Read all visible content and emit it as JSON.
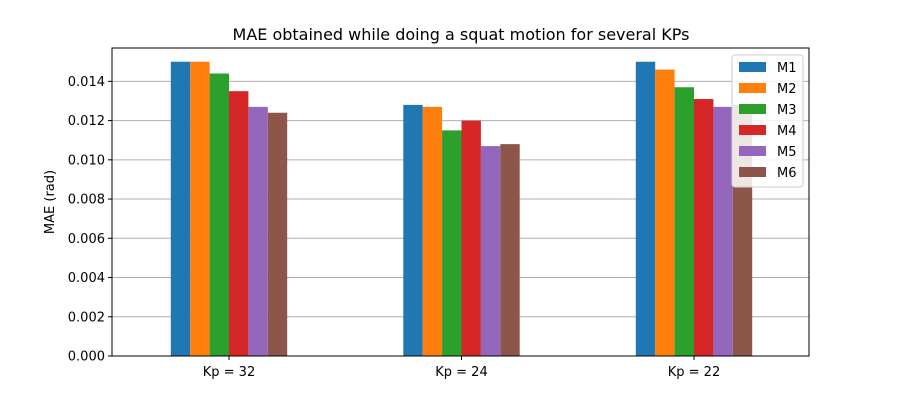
{
  "chart_data": {
    "type": "bar",
    "title": "MAE obtained while doing a squat motion for several KPs",
    "xlabel": "",
    "ylabel": "MAE (rad)",
    "ylim": [
      0,
      0.0157
    ],
    "yticks": [
      "0.000",
      "0.002",
      "0.004",
      "0.006",
      "0.008",
      "0.010",
      "0.012",
      "0.014"
    ],
    "grid": "horizontal",
    "legend_position": "top-right",
    "categories": [
      "Kp = 32",
      "Kp = 24",
      "Kp = 22"
    ],
    "series": [
      {
        "name": "M1",
        "color": "#1f77b4",
        "values": [
          0.015,
          0.0128,
          0.015
        ]
      },
      {
        "name": "M2",
        "color": "#ff7f0e",
        "values": [
          0.015,
          0.0127,
          0.0146
        ]
      },
      {
        "name": "M3",
        "color": "#2ca02c",
        "values": [
          0.0144,
          0.0115,
          0.0137
        ]
      },
      {
        "name": "M4",
        "color": "#d62728",
        "values": [
          0.0135,
          0.012,
          0.0131
        ]
      },
      {
        "name": "M5",
        "color": "#9467bd",
        "values": [
          0.0127,
          0.0107,
          0.0127
        ]
      },
      {
        "name": "M6",
        "color": "#8c564b",
        "values": [
          0.0124,
          0.0108,
          0.0128
        ]
      }
    ]
  }
}
